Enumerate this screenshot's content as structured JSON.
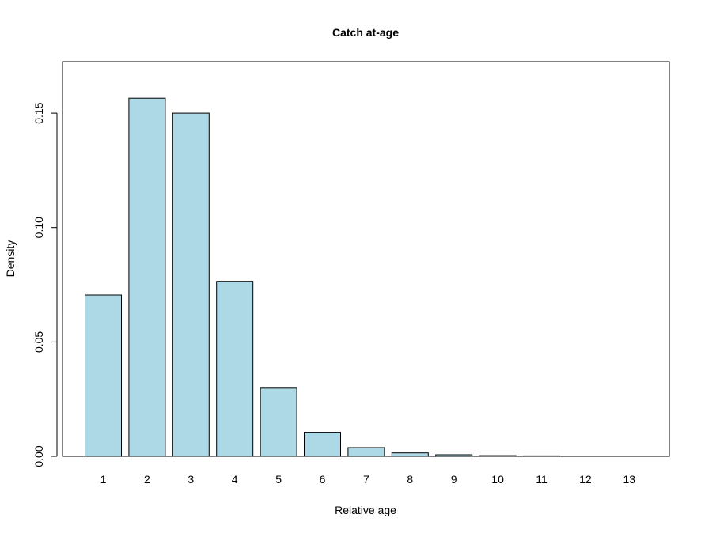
{
  "chart_data": {
    "type": "bar",
    "title": "Catch at-age",
    "xlabel": "Relative age",
    "ylabel": "Density",
    "categories": [
      "1",
      "2",
      "3",
      "4",
      "5",
      "6",
      "7",
      "8",
      "9",
      "10",
      "11",
      "12",
      "13"
    ],
    "values": [
      0.0705,
      0.1565,
      0.15,
      0.0765,
      0.0298,
      0.0105,
      0.0038,
      0.0015,
      0.0007,
      0.0003,
      0.0002,
      0.0,
      0.0
    ],
    "ylim": [
      0,
      0.172
    ],
    "yticks": [
      0.0,
      0.05,
      0.1,
      0.15
    ],
    "ytick_labels": [
      "0.00",
      "0.05",
      "0.10",
      "0.15"
    ],
    "grid": false,
    "legend": "none",
    "colors": {
      "bar_fill": "#add8e6",
      "bar_stroke": "#000000",
      "frame": "#000000"
    }
  }
}
